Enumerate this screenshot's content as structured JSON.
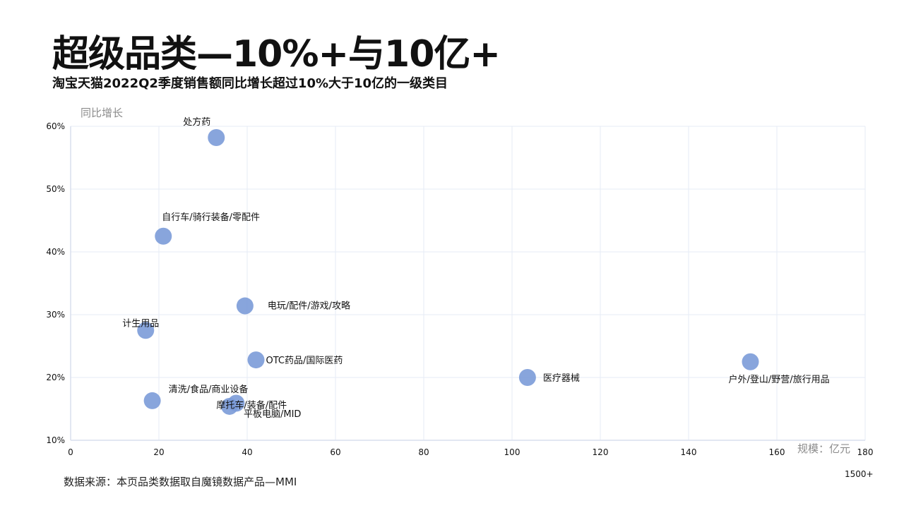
{
  "header": {
    "title": "超级品类—10%+与10亿+",
    "subtitle": "淘宝天猫2022Q2季度销售额同比增长超过10%大于10亿的一级类目"
  },
  "footer": {
    "source": "数据来源：本页品类数据取自魔镜数据产品—MMI"
  },
  "chart_data": {
    "type": "scatter",
    "xlabel": "规模：亿元",
    "ylabel": "同比增长",
    "xlim": [
      0,
      180
    ],
    "ylim": [
      10,
      60
    ],
    "x_ticks": [
      "0",
      "20",
      "40",
      "60",
      "80",
      "100",
      "120",
      "140",
      "160",
      "180"
    ],
    "y_ticks": [
      "10%",
      "20%",
      "30%",
      "40%",
      "50%",
      "60%"
    ],
    "x_axis_note": "1500+",
    "grid": true,
    "marker_color": "#7b9bd8",
    "points": [
      {
        "label": "处方药",
        "x": 33,
        "y": 58.2
      },
      {
        "label": "自行车/骑行装备/零配件",
        "x": 21,
        "y": 42.5
      },
      {
        "label": "电玩/配件/游戏/攻略",
        "x": 39.5,
        "y": 31.4
      },
      {
        "label": "计生用品",
        "x": 17,
        "y": 27.5
      },
      {
        "label": "OTC药品/国际医药",
        "x": 42,
        "y": 22.8
      },
      {
        "label": "医疗器械",
        "x": 103.5,
        "y": 20
      },
      {
        "label": "户外/登山/野营/旅行用品",
        "x": 154,
        "y": 22.5
      },
      {
        "label": "清洗/食品/商业设备",
        "x": 18.5,
        "y": 16.3
      },
      {
        "label": "摩托车/装备/配件",
        "x": 37.5,
        "y": 15.9
      },
      {
        "label": "平板电脑/MID",
        "x": 36,
        "y": 15.4
      }
    ]
  }
}
